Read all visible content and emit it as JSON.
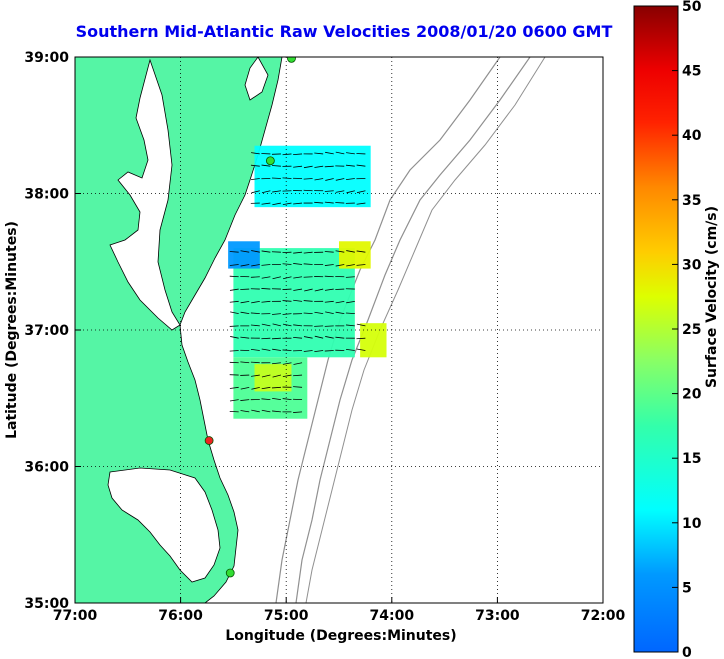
{
  "title": "Southern Mid-Atlantic Raw Velocities 2008/01/20 0600 GMT",
  "xlabel": "Longitude (Degrees:Minutes)",
  "ylabel": "Latitude (Degrees:Minutes)",
  "colorbar_label": "Surface Velocity (cm/s)",
  "x_ticks": [
    "77:00",
    "76:00",
    "75:00",
    "74:00",
    "73:00",
    "72:00"
  ],
  "y_ticks": [
    "39:00",
    "38:00",
    "37:00",
    "36:00",
    "35:00"
  ],
  "colorbar_ticks": [
    "0",
    "5",
    "10",
    "15",
    "20",
    "25",
    "30",
    "35",
    "40",
    "45",
    "50"
  ],
  "colors": {
    "land": "#55f5a5",
    "coast": "#000000",
    "bathymetry": "#909090",
    "title": "#0000ee",
    "site_green": "#33dd33",
    "site_red": "#ee2222"
  },
  "map": {
    "lon_range": [
      -77,
      -72
    ],
    "lat_range": [
      35,
      39
    ],
    "grid": true,
    "sites": [
      {
        "lon": -74.95,
        "lat": 38.99,
        "status": "green"
      },
      {
        "lon": -75.15,
        "lat": 38.24,
        "status": "green"
      },
      {
        "lon": -75.73,
        "lat": 36.19,
        "status": "red"
      },
      {
        "lon": -75.53,
        "lat": 35.22,
        "status": "green"
      }
    ],
    "regions": [
      {
        "name": "north",
        "lon": [
          -75.3,
          -74.2
        ],
        "lat": [
          37.9,
          38.35
        ],
        "speed": 11
      },
      {
        "name": "center",
        "lon": [
          -75.5,
          -74.35
        ],
        "lat": [
          36.8,
          37.6
        ],
        "speed": 17
      },
      {
        "name": "south",
        "lon": [
          -75.5,
          -74.8
        ],
        "lat": [
          36.35,
          36.8
        ],
        "speed": 19
      },
      {
        "name": "hotspot_a",
        "lon": [
          -74.5,
          -74.2
        ],
        "lat": [
          37.45,
          37.65
        ],
        "speed": 28
      },
      {
        "name": "hotspot_b",
        "lon": [
          -74.3,
          -74.05
        ],
        "lat": [
          36.8,
          37.05
        ],
        "speed": 27
      },
      {
        "name": "hotspot_c",
        "lon": [
          -75.3,
          -74.95
        ],
        "lat": [
          36.55,
          36.75
        ],
        "speed": 26
      },
      {
        "name": "slow_west",
        "lon": [
          -75.55,
          -75.25
        ],
        "lat": [
          37.45,
          37.65
        ],
        "speed": 6
      }
    ]
  }
}
